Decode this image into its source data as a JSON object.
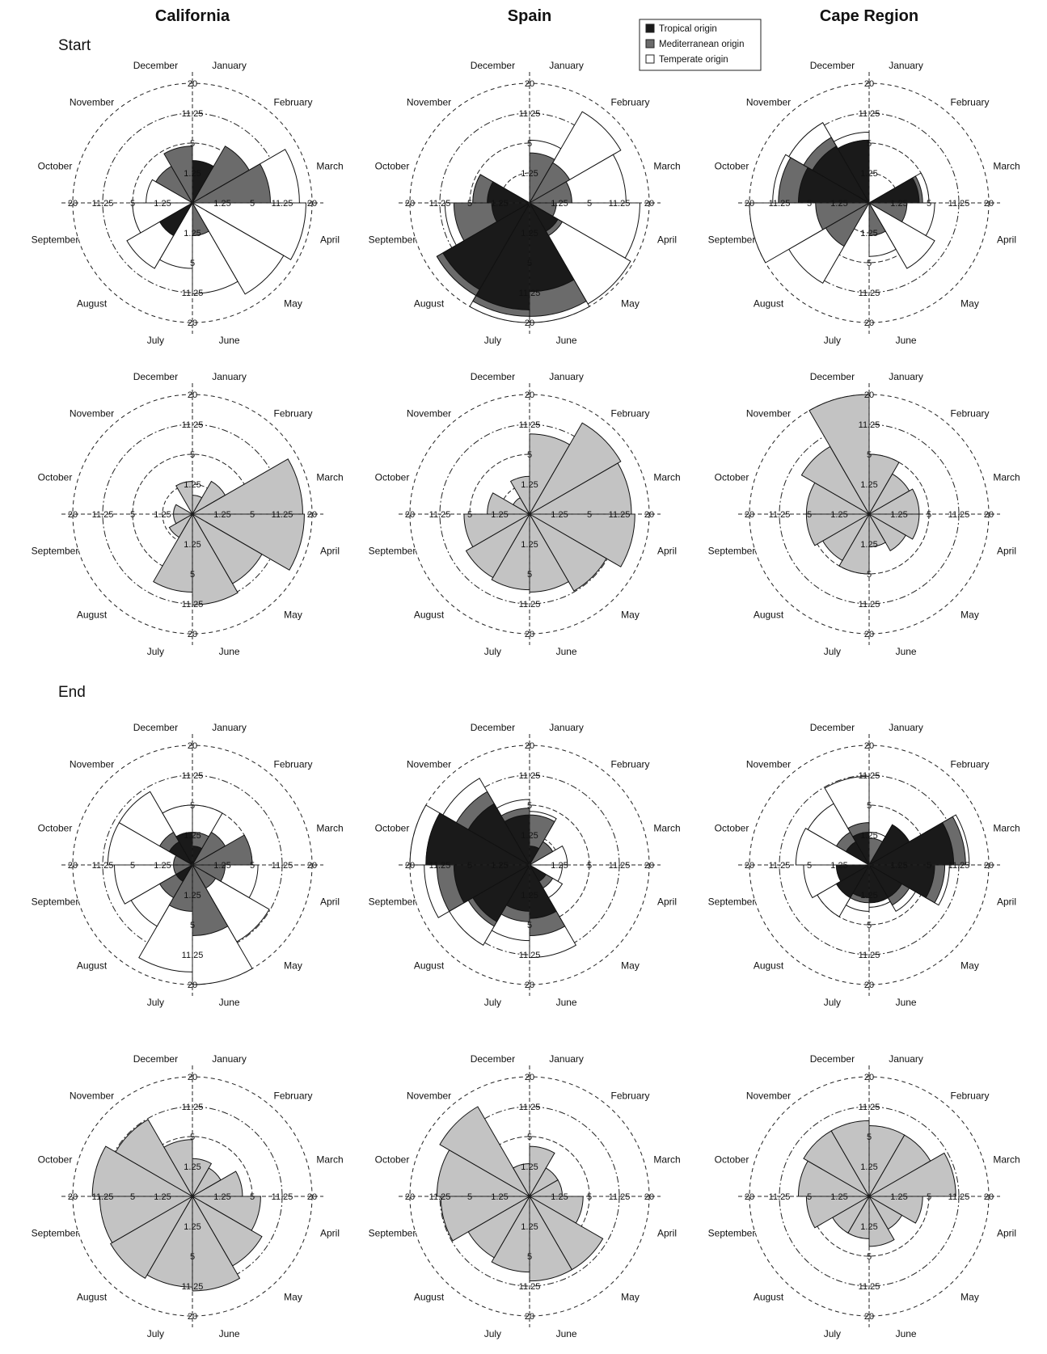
{
  "columns": [
    "California",
    "Spain",
    "Cape Region"
  ],
  "sections": [
    "Start",
    "End"
  ],
  "months": [
    "January",
    "February",
    "March",
    "April",
    "May",
    "June",
    "July",
    "August",
    "September",
    "October",
    "November",
    "December"
  ],
  "ring_labels": [
    "1.25",
    "5",
    "11.25",
    "20"
  ],
  "legend": [
    {
      "label": "Tropical origin",
      "color": "#1a1a1a"
    },
    {
      "label": "Mediterranean origin",
      "color": "#6b6b6b"
    },
    {
      "label": "Temperate origin",
      "color": "#ffffff"
    }
  ],
  "colors": {
    "tropical": "#1a1a1a",
    "mediterranean": "#6b6b6b",
    "temperate": "#ffffff",
    "total": "#c3c3c3",
    "axis": "#222222"
  },
  "chart_data": [
    {
      "type": "rose",
      "region": "California",
      "phase": "Start",
      "kind": "stacked",
      "series": [
        {
          "name": "Tropical origin",
          "values": [
            2.5,
            0,
            0,
            0,
            0,
            0,
            0,
            2,
            0,
            0,
            0,
            0
          ]
        },
        {
          "name": "Mediterranean origin",
          "values": [
            1.5,
            6,
            8.5,
            0,
            0,
            1.5,
            0,
            0,
            0,
            0,
            2.5,
            4.5
          ]
        },
        {
          "name": "Temperate origin",
          "values": [
            0,
            0,
            16,
            18,
            15.5,
            11.5,
            6,
            8,
            5,
            3,
            0,
            0
          ]
        }
      ]
    },
    {
      "type": "rose",
      "region": "California",
      "phase": "Start",
      "kind": "total",
      "series": [
        {
          "name": "",
          "values": [
            0.5,
            2,
            17,
            17.5,
            9,
            11.5,
            8.5,
            1,
            0.5,
            0.5,
            0,
            1.5
          ]
        }
      ]
    },
    {
      "type": "rose",
      "region": "California",
      "phase": "End",
      "kind": "stacked",
      "series": [
        {
          "name": "Tropical origin",
          "values": [
            0.5,
            0,
            0,
            0,
            0,
            0,
            0,
            0.5,
            0,
            0,
            1,
            1.5
          ]
        },
        {
          "name": "Mediterranean origin",
          "values": [
            1.5,
            2,
            5,
            1.5,
            1,
            7,
            3,
            2,
            0.5,
            0.5,
            2,
            0
          ]
        },
        {
          "name": "Temperate origin",
          "values": [
            5,
            0,
            0,
            6,
            11,
            20,
            16,
            7,
            8.5,
            10,
            10,
            5
          ]
        }
      ]
    },
    {
      "type": "rose",
      "region": "California",
      "phase": "End",
      "kind": "total",
      "series": [
        {
          "name": "",
          "values": [
            2,
            1.5,
            3.5,
            6.5,
            9,
            12.5,
            11.5,
            12.5,
            12,
            14,
            11,
            4.5
          ]
        }
      ]
    },
    {
      "type": "rose",
      "region": "Spain",
      "phase": "Start",
      "kind": "stacked",
      "series": [
        {
          "name": "Tropical origin",
          "values": [
            0,
            0,
            0,
            0,
            1.5,
            11,
            16,
            14,
            2,
            2.5,
            0,
            0
          ]
        },
        {
          "name": "Mediterranean origin",
          "values": [
            3.5,
            3,
            2.5,
            1,
            2,
            18,
            18,
            16,
            8,
            4.5,
            0,
            0
          ]
        },
        {
          "name": "Temperate origin",
          "values": [
            5.5,
            15.5,
            13,
            17,
            19,
            20,
            20,
            16,
            10,
            4.5,
            0,
            0
          ]
        }
      ]
    },
    {
      "type": "rose",
      "region": "Spain",
      "phase": "Start",
      "kind": "total",
      "series": [
        {
          "name": "",
          "values": [
            9,
            15.5,
            14.5,
            15.5,
            11,
            8.5,
            8,
            7.5,
            6,
            2.5,
            0.5,
            2
          ]
        }
      ]
    },
    {
      "type": "rose",
      "region": "Spain",
      "phase": "End",
      "kind": "stacked",
      "series": [
        {
          "name": "Tropical origin",
          "values": [
            0.5,
            0,
            0,
            0,
            0.5,
            4,
            3,
            6,
            8,
            15,
            7,
            3.5
          ]
        },
        {
          "name": "Mediterranean origin",
          "values": [
            3.5,
            1,
            0,
            0,
            1,
            7,
            4.5,
            7,
            12,
            15,
            10,
            4.5
          ]
        },
        {
          "name": "Temperate origin",
          "values": [
            4,
            1,
            2,
            1.5,
            2,
            12,
            8,
            12,
            15.5,
            20,
            14,
            6
          ]
        }
      ]
    },
    {
      "type": "rose",
      "region": "Spain",
      "phase": "End",
      "kind": "total",
      "series": [
        {
          "name": "",
          "values": [
            3.5,
            1.5,
            1.5,
            4,
            10,
            10,
            8,
            7,
            11,
            12,
            15,
            1.5
          ]
        }
      ]
    },
    {
      "type": "rose",
      "region": "Cape Region",
      "phase": "Start",
      "kind": "stacked",
      "series": [
        {
          "name": "Tropical origin",
          "values": [
            0,
            0,
            3.5,
            0,
            0,
            0,
            0,
            0,
            0,
            7,
            6,
            5.5
          ]
        },
        {
          "name": "Mediterranean origin",
          "values": [
            0,
            0,
            4,
            2,
            0,
            1.5,
            0,
            3.5,
            4,
            11.5,
            8,
            5.5
          ]
        },
        {
          "name": "Temperate origin",
          "values": [
            0,
            0,
            5,
            6,
            8,
            4,
            0,
            12,
            20,
            13,
            12,
            7
          ]
        }
      ]
    },
    {
      "type": "rose",
      "region": "Cape Region",
      "phase": "Start",
      "kind": "total",
      "series": [
        {
          "name": "",
          "values": [
            5,
            3,
            3.5,
            3.5,
            2.5,
            1.5,
            5,
            4,
            5.5,
            5.5,
            8.5,
            20
          ]
        }
      ]
    },
    {
      "type": "rose",
      "region": "Cape Region",
      "phase": "End",
      "kind": "stacked",
      "series": [
        {
          "name": "Tropical origin",
          "values": [
            0,
            3,
            10,
            6,
            2,
            2,
            1.5,
            2,
            1.5,
            0,
            1,
            1.5
          ]
        },
        {
          "name": "Mediterranean origin",
          "values": [
            1,
            3,
            13,
            8,
            3,
            2,
            2,
            2,
            1.5,
            0,
            2,
            2.5
          ]
        },
        {
          "name": "Temperate origin",
          "values": [
            1.5,
            3,
            14,
            9,
            4,
            2.5,
            3,
            5,
            6,
            7.5,
            7,
            11
          ]
        }
      ]
    },
    {
      "type": "rose",
      "region": "Cape Region",
      "phase": "End",
      "kind": "total",
      "series": [
        {
          "name": "",
          "values": [
            7,
            7,
            10.5,
            4,
            2,
            3.5,
            2.5,
            2.5,
            5.5,
            7,
            8,
            8
          ]
        }
      ]
    }
  ]
}
